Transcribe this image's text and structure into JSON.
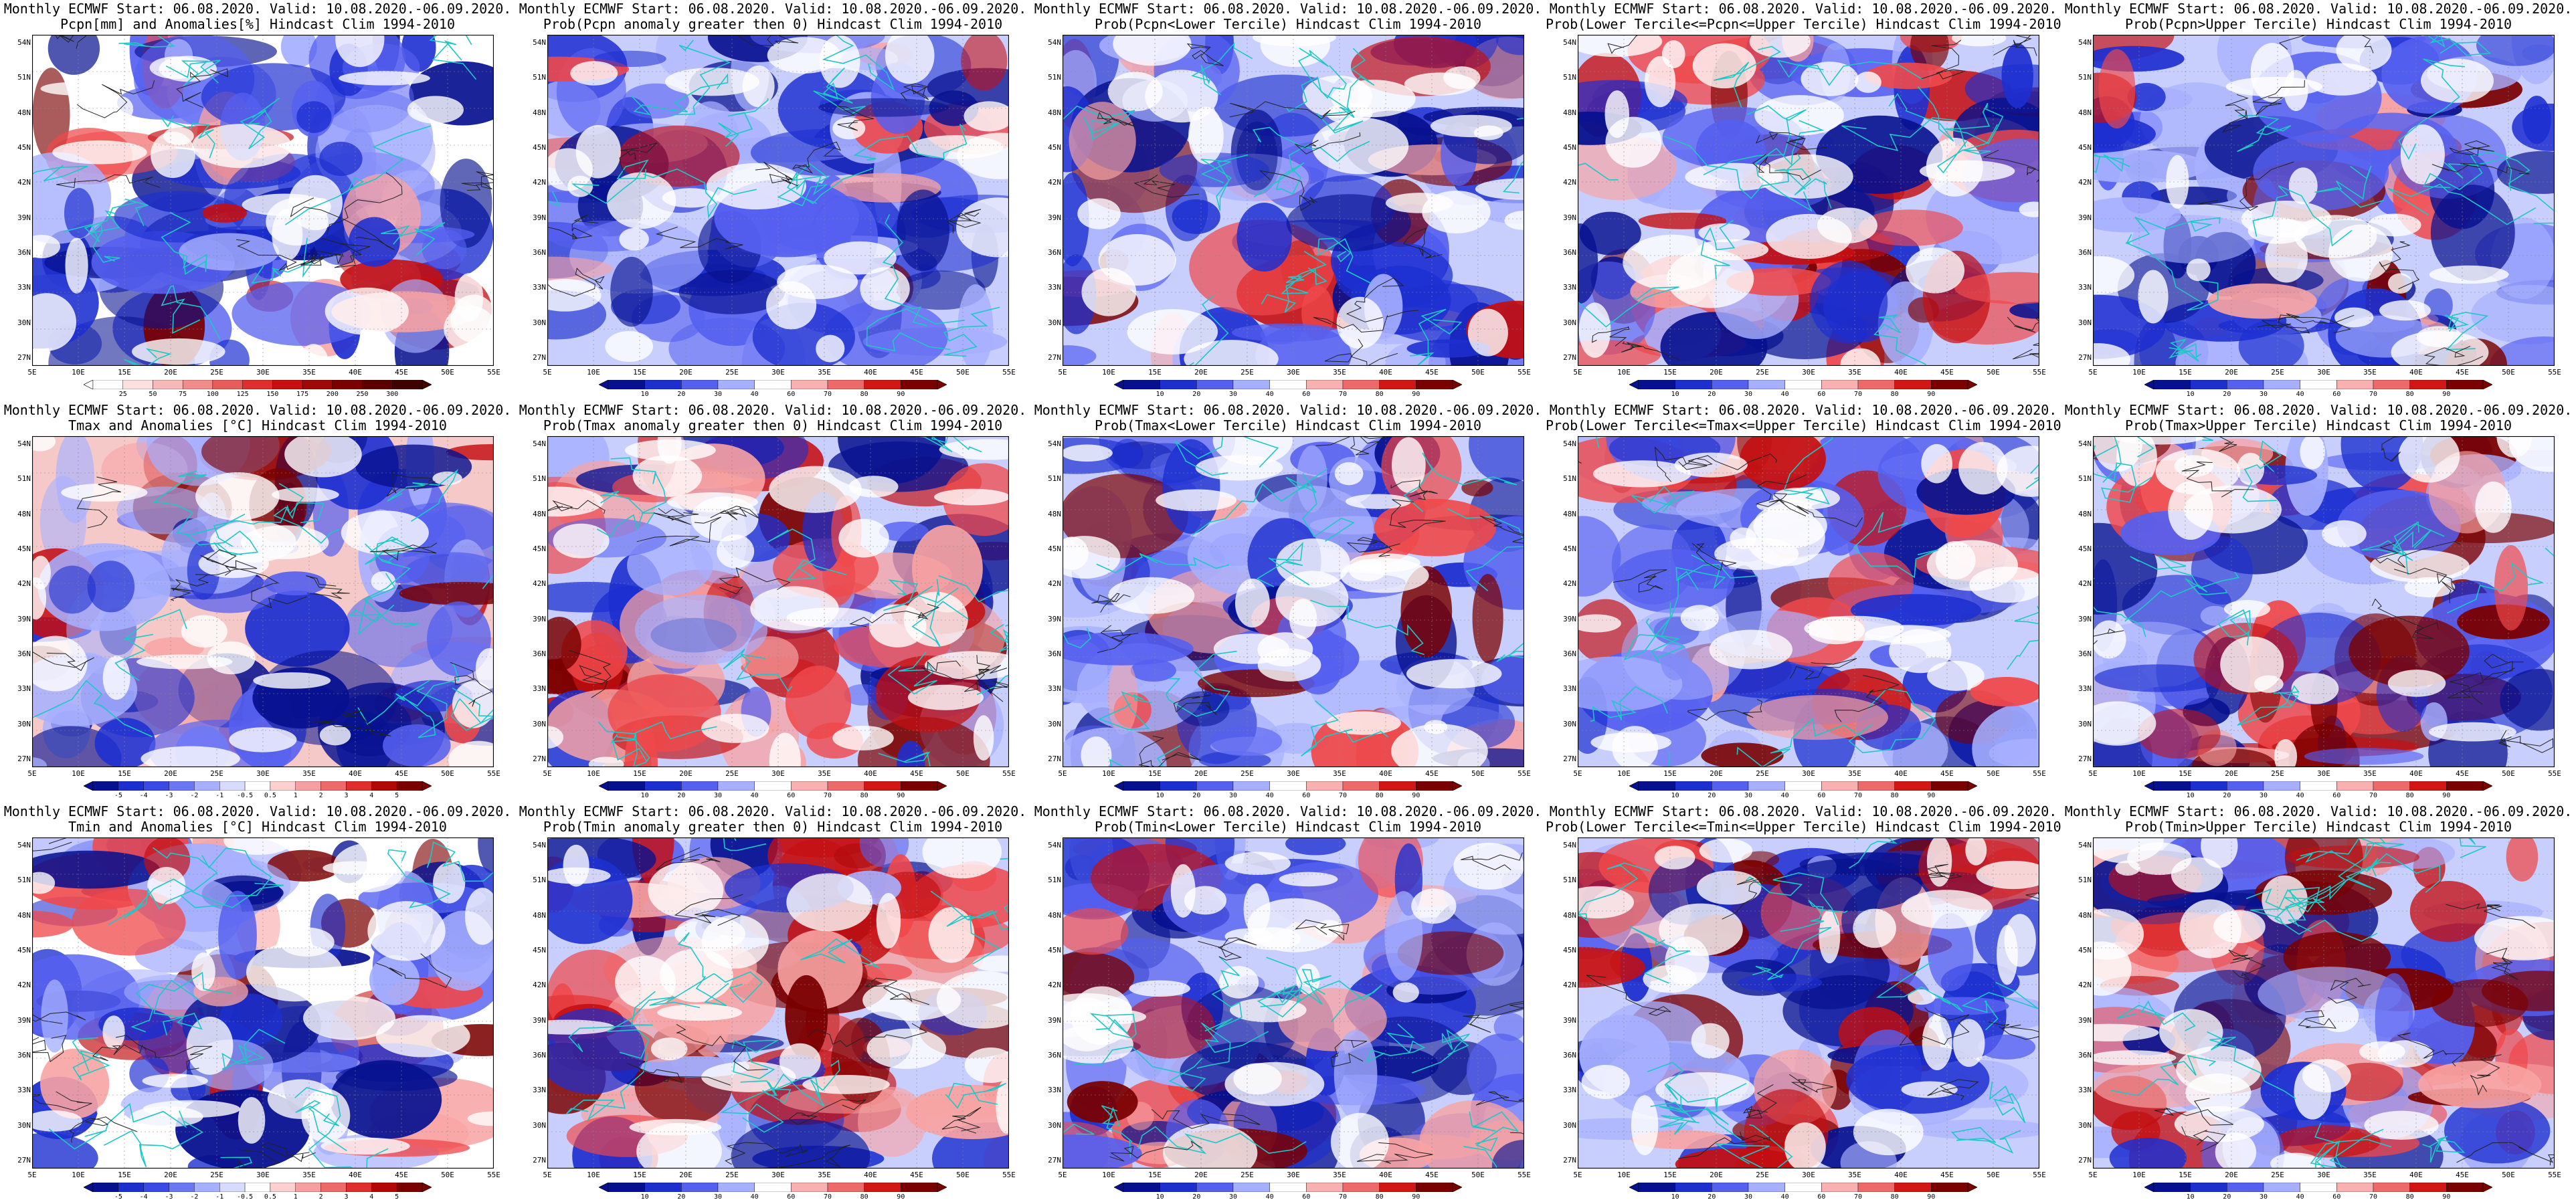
{
  "figure": {
    "header": "Monthly ECMWF Start: 06.08.2020. Valid: 10.08.2020.-06.09.2020.",
    "lat_labels": [
      "54N",
      "51N",
      "48N",
      "45N",
      "42N",
      "39N",
      "36N",
      "33N",
      "30N",
      "27N"
    ],
    "lon_labels": [
      "5E",
      "10E",
      "15E",
      "20E",
      "25E",
      "30E",
      "35E",
      "40E",
      "45E",
      "50E",
      "55E"
    ],
    "prob_ticks": [
      "10",
      "20",
      "30",
      "40",
      "60",
      "70",
      "80",
      "90"
    ],
    "colors": {
      "deep_red": "#7a0000",
      "red": "#e8181c",
      "white": "#ffffff",
      "light_blue": "#c8d2ff",
      "blue": "#2a3bde",
      "deep_blue": "#07118f",
      "coast": "#1fc7c7"
    }
  },
  "panels": [
    {
      "title2": "Pcpn[mm] and Anomalies[%] Hindcast Clim 1994-2010",
      "scale": "anom_pcpn",
      "ticks": [
        "25",
        "50",
        "75",
        "100",
        "125",
        "150",
        "175",
        "200",
        "250",
        "300"
      ]
    },
    {
      "title2": "Prob(Pcpn anomaly greater then 0) Hindcast Clim 1994-2010",
      "scale": "prob"
    },
    {
      "title2": "Prob(Pcpn<Lower Tercile) Hindcast Clim 1994-2010",
      "scale": "prob"
    },
    {
      "title2": "Prob(Lower Tercile<=Pcpn<=Upper Tercile) Hindcast Clim 1994-2010",
      "scale": "prob"
    },
    {
      "title2": "Prob(Pcpn>Upper Tercile) Hindcast Clim 1994-2010",
      "scale": "prob"
    },
    {
      "title2": "Tmax and Anomalies [°C] Hindcast Clim 1994-2010",
      "scale": "anom_temp",
      "ticks": [
        "-5",
        "-4",
        "-3",
        "-2",
        "-1",
        "-0.5",
        "0.5",
        "1",
        "2",
        "3",
        "4",
        "5"
      ]
    },
    {
      "title2": "Prob(Tmax anomaly greater then 0) Hindcast Clim 1994-2010",
      "scale": "prob"
    },
    {
      "title2": "Prob(Tmax<Lower Tercile) Hindcast Clim 1994-2010",
      "scale": "prob"
    },
    {
      "title2": "Prob(Lower Tercile<=Tmax<=Upper Tercile) Hindcast Clim 1994-2010",
      "scale": "prob"
    },
    {
      "title2": "Prob(Tmax>Upper Tercile) Hindcast Clim 1994-2010",
      "scale": "prob"
    },
    {
      "title2": "Tmin and Anomalies [°C] Hindcast Clim 1994-2010",
      "scale": "anom_temp",
      "ticks": [
        "-5",
        "-4",
        "-3",
        "-2",
        "-1",
        "-0.5",
        "0.5",
        "1",
        "2",
        "3",
        "4",
        "5"
      ]
    },
    {
      "title2": "Prob(Tmin anomaly greater then 0) Hindcast Clim 1994-2010",
      "scale": "prob"
    },
    {
      "title2": "Prob(Tmin<Lower Tercile) Hindcast Clim 1994-2010",
      "scale": "prob"
    },
    {
      "title2": "Prob(Lower Tercile<=Tmin<=Upper Tercile) Hindcast Clim 1994-2010",
      "scale": "prob"
    },
    {
      "title2": "Prob(Tmin>Upper Tercile) Hindcast Clim 1994-2010",
      "scale": "prob"
    }
  ]
}
